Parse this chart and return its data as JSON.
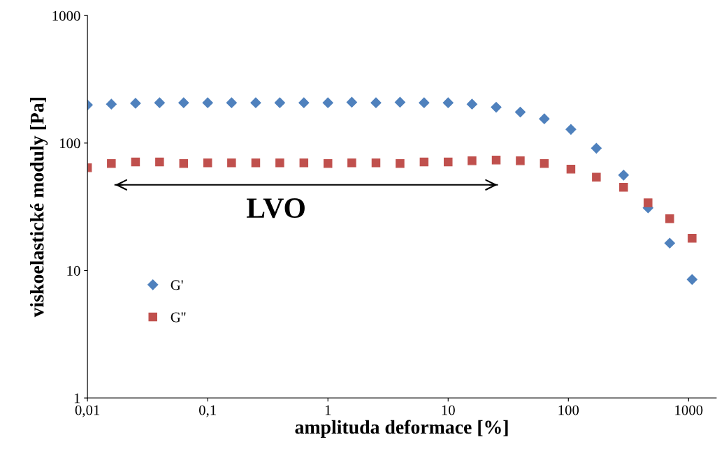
{
  "chart_data": {
    "type": "scatter",
    "xlabel": "amplituda deformace [%]",
    "ylabel": "viskoelastické moduly [Pa]",
    "log": "xy",
    "xlim": [
      0.01,
      1700
    ],
    "ylim": [
      1,
      1000
    ],
    "xticks": [
      {
        "value": 0.01,
        "label": "0,01"
      },
      {
        "value": 0.1,
        "label": "0,1"
      },
      1,
      10,
      100,
      1000
    ],
    "yticks": [
      1,
      10,
      100,
      1000
    ],
    "grid": false,
    "legend": "left",
    "annotations": [
      "LVO"
    ],
    "series": [
      {
        "name": "G'",
        "color": "#4f81bd",
        "marker": "diamond",
        "x": [
          0.01,
          0.0158,
          0.0251,
          0.0398,
          0.0631,
          0.1,
          0.158,
          0.251,
          0.398,
          0.631,
          1,
          1.58,
          2.51,
          3.98,
          6.31,
          10,
          15.8,
          25.1,
          39.8,
          63.1,
          105,
          171,
          288,
          460,
          697,
          1070
        ],
        "values": [
          199,
          202,
          205,
          207,
          207,
          207,
          207,
          207,
          207,
          207,
          207,
          209,
          207,
          209,
          207,
          207,
          202,
          191,
          175,
          155,
          128,
          91,
          56,
          31,
          16.4,
          8.5
        ]
      },
      {
        "name": "G''",
        "color": "#c0504d",
        "marker": "square",
        "x": [
          0.01,
          0.0158,
          0.0251,
          0.0398,
          0.0631,
          0.1,
          0.158,
          0.251,
          0.398,
          0.631,
          1,
          1.58,
          2.51,
          3.98,
          6.31,
          10,
          15.8,
          25.1,
          39.8,
          63.1,
          105,
          171,
          288,
          460,
          697,
          1070
        ],
        "values": [
          64,
          69,
          71,
          71,
          69,
          70,
          70,
          70,
          70,
          70,
          69,
          70,
          70,
          69,
          71,
          71,
          72.6,
          73.5,
          72.6,
          69,
          62.4,
          54,
          45,
          34,
          25.5,
          17.9
        ]
      },
      {
        "type": "line",
        "color": "#000000",
        "marker": "none",
        "line_style": "solid",
        "x": [
          0.017,
          25.6
        ],
        "values": [
          47,
          47
        ]
      }
    ]
  }
}
